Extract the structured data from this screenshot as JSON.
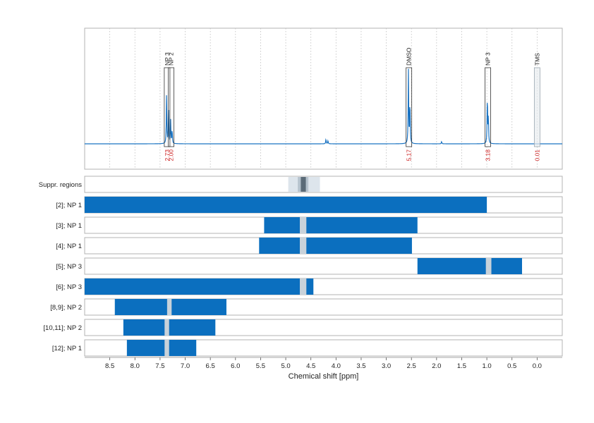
{
  "chart_data": {
    "type": "nmr-spectrum-with-range-bars",
    "xlabel": "Chemical shift [ppm]",
    "x_reversed": true,
    "xlim": [
      9.0,
      -0.5
    ],
    "x_ticks": [
      "8.5",
      "8.0",
      "7.5",
      "7.0",
      "6.5",
      "6.0",
      "5.5",
      "5.0",
      "4.5",
      "4.0",
      "3.5",
      "3.0",
      "2.5",
      "2.0",
      "1.5",
      "1.0",
      "0.5",
      "0.0"
    ],
    "colors": {
      "spectrum": "#1a73c2",
      "bar": "#0b6fbf",
      "gap": "#c8d2da",
      "integral": "#cc1f1f",
      "suppr_outer": "#dde5ec",
      "suppr_inner": "#b6c3ce",
      "suppr_core": "#5b6b78"
    },
    "peak_annotations": [
      {
        "label": "NP 3",
        "ppm": 7.36,
        "integral": "2.73"
      },
      {
        "label": "NP 2",
        "ppm": 7.28,
        "integral": "2.00"
      },
      {
        "label": "DMSO",
        "ppm": 2.55,
        "integral": "5.17"
      },
      {
        "label": "NP 3",
        "ppm": 0.98,
        "integral": "3.18"
      },
      {
        "label": "TMS",
        "ppm": 0.0,
        "integral": "0.01"
      }
    ],
    "spectrum_peaks": [
      {
        "ppm": 7.37,
        "height": 0.65
      },
      {
        "ppm": 7.33,
        "height": 0.42
      },
      {
        "ppm": 7.29,
        "height": 0.3
      },
      {
        "ppm": 7.26,
        "height": 0.18
      },
      {
        "ppm": 4.2,
        "height": 0.06
      },
      {
        "ppm": 4.16,
        "height": 0.04
      },
      {
        "ppm": 2.56,
        "height": 0.95
      },
      {
        "ppm": 2.53,
        "height": 0.55
      },
      {
        "ppm": 1.9,
        "height": 0.03
      },
      {
        "ppm": 0.99,
        "height": 0.62
      },
      {
        "ppm": 0.97,
        "height": 0.35
      }
    ],
    "suppressed_regions": {
      "label": "Suppr. regions",
      "outer": [
        4.95,
        4.32
      ],
      "inner": [
        4.76,
        4.55
      ],
      "core": [
        4.7,
        4.6
      ]
    },
    "range_rows": [
      {
        "label": "[2]; NP 1",
        "segments": [
          [
            9.0,
            1.0
          ]
        ],
        "gaps": []
      },
      {
        "label": "[3]; NP 1",
        "segments": [
          [
            5.43,
            2.38
          ]
        ],
        "gaps": [
          [
            4.72,
            4.59
          ]
        ]
      },
      {
        "label": "[4]; NP 1",
        "segments": [
          [
            5.53,
            2.49
          ]
        ],
        "gaps": [
          [
            4.72,
            4.59
          ]
        ]
      },
      {
        "label": "[5]; NP 3",
        "segments": [
          [
            2.38,
            0.3
          ]
        ],
        "gaps": [
          [
            1.02,
            0.91
          ]
        ]
      },
      {
        "label": "[6]; NP 3",
        "segments": [
          [
            9.0,
            4.45
          ]
        ],
        "gaps": [
          [
            4.72,
            4.59
          ]
        ]
      },
      {
        "label": "[8,9]; NP 2",
        "segments": [
          [
            8.4,
            6.18
          ]
        ],
        "gaps": [
          [
            7.36,
            7.27
          ]
        ]
      },
      {
        "label": "[10,11]; NP 2",
        "segments": [
          [
            8.23,
            6.4
          ]
        ],
        "gaps": [
          [
            7.41,
            7.32
          ]
        ]
      },
      {
        "label": "[12]; NP 1",
        "segments": [
          [
            8.16,
            6.78
          ]
        ],
        "gaps": [
          [
            7.41,
            7.32
          ]
        ]
      }
    ]
  }
}
